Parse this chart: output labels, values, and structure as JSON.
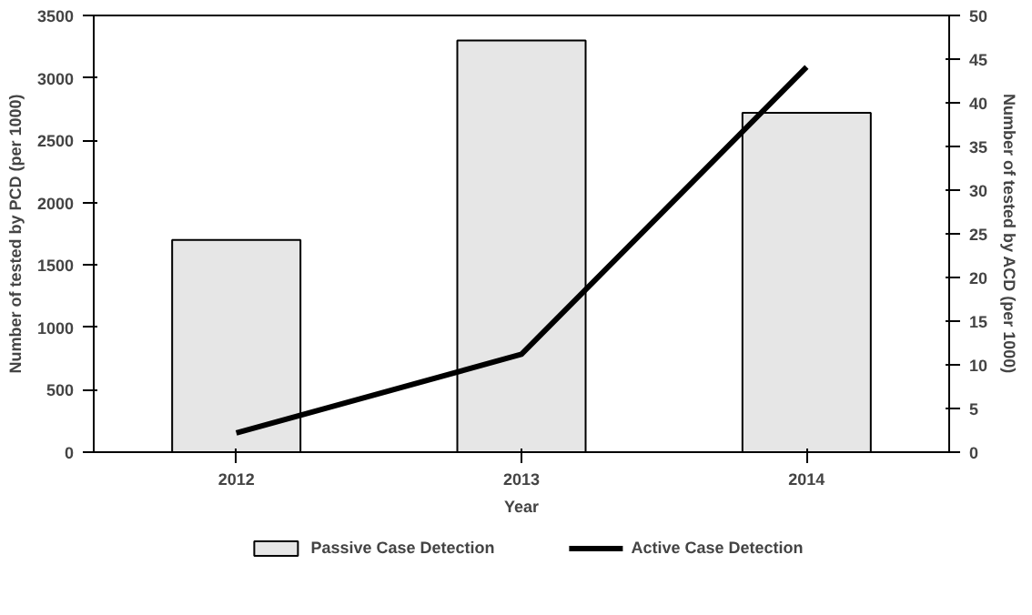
{
  "chart_data": {
    "type": "bar",
    "xlabel": "Year",
    "ylabel": "Number of tested by PCD (per 1000)",
    "y2label": "Number of tested by ACD (per 1000)",
    "categories": [
      "2012",
      "2013",
      "2014"
    ],
    "series": [
      {
        "name": "Passive Case Detection",
        "color": "#e6e6e6",
        "values": [
          1700,
          3300,
          2720
        ]
      },
      {
        "name": "Active Case Detection",
        "type": "line",
        "axis": "y2",
        "color": "#000000",
        "values": [
          2.2,
          11.2,
          44.1
        ]
      }
    ],
    "ylim": [
      0,
      3500
    ],
    "yticks": [
      0,
      500,
      1000,
      1500,
      2000,
      2500,
      3000,
      3500
    ],
    "y2lim": [
      0,
      50
    ],
    "y2ticks": [
      0,
      5,
      10,
      15,
      20,
      25,
      30,
      35,
      40,
      45,
      50
    ],
    "grid": false,
    "legend": "bottom",
    "marker": "none",
    "line_style": "solid"
  }
}
